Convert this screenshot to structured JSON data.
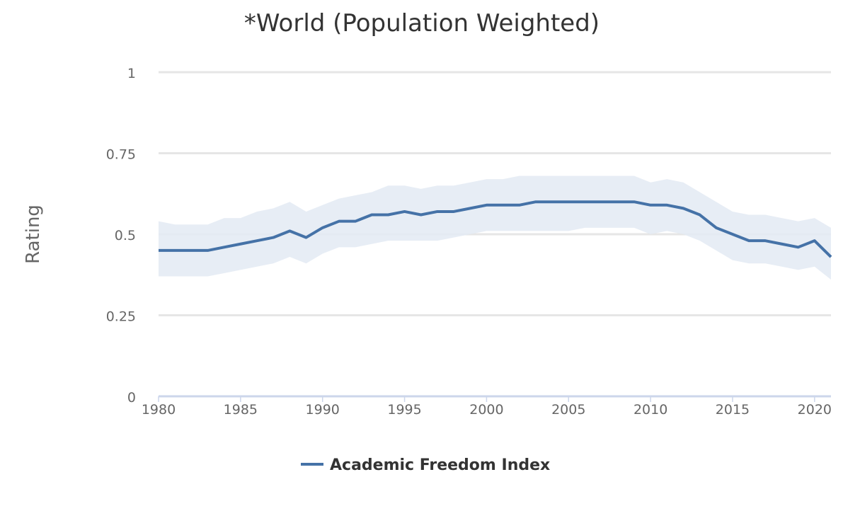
{
  "chart_data": {
    "type": "line",
    "title": "*World (Population Weighted)",
    "xlabel": "",
    "ylabel": "Rating",
    "xlim": [
      1980,
      2021
    ],
    "ylim": [
      0,
      1
    ],
    "x_ticks": [
      1980,
      1985,
      1990,
      1995,
      2000,
      2005,
      2010,
      2015,
      2020
    ],
    "y_ticks": [
      0,
      0.25,
      0.5,
      0.75,
      1
    ],
    "y_tick_labels": [
      "0",
      "0.25",
      "0.5",
      "0.75",
      "1"
    ],
    "grid": true,
    "legend": "bottom-center",
    "x": [
      1980,
      1981,
      1982,
      1983,
      1984,
      1985,
      1986,
      1987,
      1988,
      1989,
      1990,
      1991,
      1992,
      1993,
      1994,
      1995,
      1996,
      1997,
      1998,
      1999,
      2000,
      2001,
      2002,
      2003,
      2004,
      2005,
      2006,
      2007,
      2008,
      2009,
      2010,
      2011,
      2012,
      2013,
      2014,
      2015,
      2016,
      2017,
      2018,
      2019,
      2020,
      2021
    ],
    "series": [
      {
        "name": "Academic Freedom Index",
        "color": "#4572a7",
        "band_color": "#e3eaf3",
        "values": [
          0.45,
          0.45,
          0.45,
          0.45,
          0.46,
          0.47,
          0.48,
          0.49,
          0.51,
          0.49,
          0.52,
          0.54,
          0.54,
          0.56,
          0.56,
          0.57,
          0.56,
          0.57,
          0.57,
          0.58,
          0.59,
          0.59,
          0.59,
          0.6,
          0.6,
          0.6,
          0.6,
          0.6,
          0.6,
          0.6,
          0.59,
          0.59,
          0.58,
          0.56,
          0.52,
          0.5,
          0.48,
          0.48,
          0.47,
          0.46,
          0.48,
          0.43
        ],
        "upper": [
          0.54,
          0.53,
          0.53,
          0.53,
          0.55,
          0.55,
          0.57,
          0.58,
          0.6,
          0.57,
          0.59,
          0.61,
          0.62,
          0.63,
          0.65,
          0.65,
          0.64,
          0.65,
          0.65,
          0.66,
          0.67,
          0.67,
          0.68,
          0.68,
          0.68,
          0.68,
          0.68,
          0.68,
          0.68,
          0.68,
          0.66,
          0.67,
          0.66,
          0.63,
          0.6,
          0.57,
          0.56,
          0.56,
          0.55,
          0.54,
          0.55,
          0.52
        ],
        "lower": [
          0.37,
          0.37,
          0.37,
          0.37,
          0.38,
          0.39,
          0.4,
          0.41,
          0.43,
          0.41,
          0.44,
          0.46,
          0.46,
          0.47,
          0.48,
          0.48,
          0.48,
          0.48,
          0.49,
          0.5,
          0.51,
          0.51,
          0.51,
          0.51,
          0.51,
          0.51,
          0.52,
          0.52,
          0.52,
          0.52,
          0.5,
          0.51,
          0.5,
          0.48,
          0.45,
          0.42,
          0.41,
          0.41,
          0.4,
          0.39,
          0.4,
          0.36
        ]
      }
    ]
  }
}
